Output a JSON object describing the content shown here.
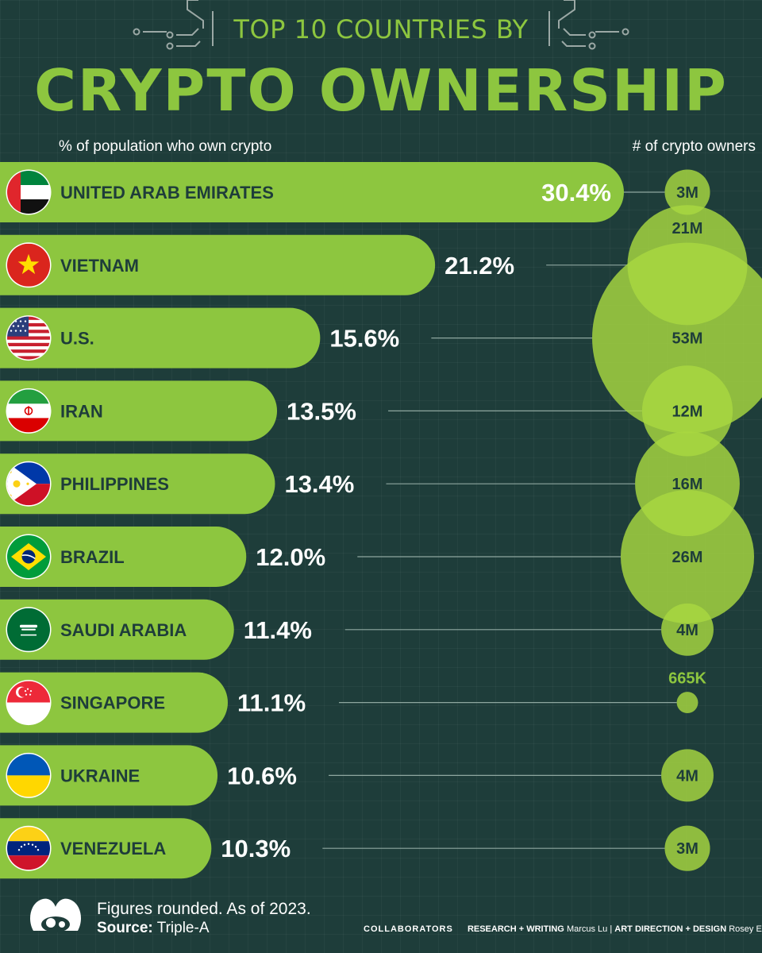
{
  "header": {
    "title_line1": "TOP 10 COUNTRIES BY",
    "title_line2": "CRYPTO OWNERSHIP",
    "left_axis_label": "% of population who own crypto",
    "right_axis_label": "# of crypto owners"
  },
  "footer": {
    "note": "Figures rounded. As of 2023.",
    "source_label": "Source:",
    "source_value": "Triple-A",
    "collaborators_label": "COLLABORATORS",
    "research_label": "RESEARCH + WRITING",
    "research_name": "Marcus Lu",
    "separator": "|",
    "design_label": "ART DIRECTION + DESIGN",
    "design_name": "Rosey Eason"
  },
  "colors": {
    "background": "#1e3d3a",
    "bar": "#8dc63f",
    "bubble": "#a8d841",
    "dark_text": "#1e3d3a",
    "light_text": "#ffffff"
  },
  "chart_data": {
    "type": "bar",
    "title": "TOP 10 COUNTRIES BY CRYPTO OWNERSHIP",
    "xlabel": "% of population who own crypto",
    "ylabel": "",
    "categories": [
      "UNITED ARAB EMIRATES",
      "VIETNAM",
      "U.S.",
      "IRAN",
      "PHILIPPINES",
      "BRAZIL",
      "SAUDI ARABIA",
      "SINGAPORE",
      "UKRAINE",
      "VENEZUELA"
    ],
    "series": [
      {
        "name": "% of population who own crypto",
        "values": [
          30.4,
          21.2,
          15.6,
          13.5,
          13.4,
          12.0,
          11.4,
          11.1,
          10.6,
          10.3
        ],
        "labels": [
          "30.4%",
          "21.2%",
          "15.6%",
          "13.5%",
          "13.4%",
          "12.0%",
          "11.4%",
          "11.1%",
          "10.6%",
          "10.3%"
        ]
      },
      {
        "name": "# of crypto owners",
        "values": [
          3000000,
          21000000,
          53000000,
          12000000,
          16000000,
          26000000,
          4000000,
          665000,
          4000000,
          3000000
        ],
        "labels": [
          "3M",
          "21M",
          "53M",
          "12M",
          "16M",
          "26M",
          "4M",
          "665K",
          "4M",
          "3M"
        ]
      }
    ],
    "flags": [
      "uae-flag",
      "vietnam-flag",
      "us-flag",
      "iran-flag",
      "philippines-flag",
      "brazil-flag",
      "saudi-arabia-flag",
      "singapore-flag",
      "ukraine-flag",
      "venezuela-flag"
    ]
  }
}
